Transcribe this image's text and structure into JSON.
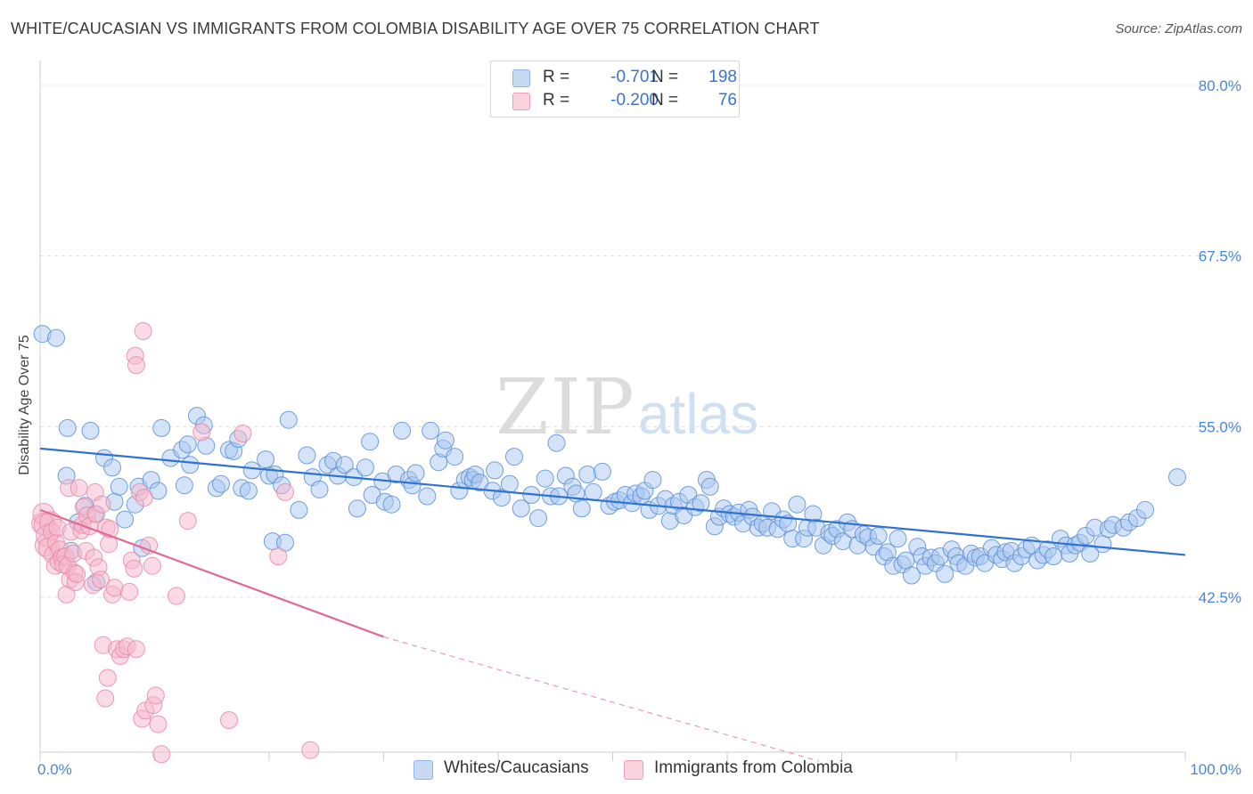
{
  "title": "WHITE/CAUCASIAN VS IMMIGRANTS FROM COLOMBIA DISABILITY AGE OVER 75 CORRELATION CHART",
  "source": "Source: ZipAtlas.com",
  "watermark": {
    "zip": "ZIP",
    "atlas": "atlas"
  },
  "legend": {
    "rows": [
      {
        "r_label": "R =",
        "r_value": "-0.701",
        "n_label": "N =",
        "n_value": "198",
        "color": "#a9c8ef"
      },
      {
        "r_label": "R =",
        "r_value": "-0.200",
        "n_label": "N =",
        "n_value": "76",
        "color": "#f6b8cb"
      }
    ]
  },
  "bottom_legend": [
    {
      "label": "Whites/Caucasians",
      "color": "#a9c8ef"
    },
    {
      "label": "Immigrants from Colombia",
      "color": "#f6b8cb"
    }
  ],
  "chart_data": {
    "type": "scatter",
    "title": "WHITE/CAUCASIAN VS IMMIGRANTS FROM COLOMBIA DISABILITY AGE OVER 75 CORRELATION CHART",
    "xlabel": "",
    "ylabel": "Disability Age Over 75",
    "xlim": [
      0,
      100
    ],
    "ylim": [
      30.5,
      81.5
    ],
    "x_tick_labels": [
      {
        "value": 0,
        "label": "0.0%"
      },
      {
        "value": 100,
        "label": "100.0%"
      }
    ],
    "y_tick_labels": [
      {
        "value": 42.5,
        "label": "42.5%"
      },
      {
        "value": 55.0,
        "label": "55.0%"
      },
      {
        "value": 67.5,
        "label": "67.5%"
      },
      {
        "value": 80.0,
        "label": "80.0%"
      }
    ],
    "grid": true,
    "legend_position": "top-center",
    "series": [
      {
        "name": "Whites/Caucasians",
        "color": "#5b8fd8",
        "fill": "#a9c8ef",
        "trend": {
          "x": [
            0,
            100
          ],
          "y": [
            53.4,
            45.6
          ]
        },
        "points": [
          [
            0.2,
            61.8
          ],
          [
            1.4,
            61.5
          ],
          [
            2.3,
            51.4
          ],
          [
            2.4,
            54.9
          ],
          [
            2.7,
            45.9
          ],
          [
            3.3,
            48.0
          ],
          [
            3.9,
            49.2
          ],
          [
            4.4,
            54.7
          ],
          [
            4.8,
            48.6
          ],
          [
            4.9,
            43.6
          ],
          [
            5.6,
            52.7
          ],
          [
            6.3,
            52.0
          ],
          [
            6.5,
            49.5
          ],
          [
            6.9,
            50.6
          ],
          [
            7.4,
            48.2
          ],
          [
            8.3,
            49.3
          ],
          [
            8.6,
            50.6
          ],
          [
            8.9,
            46.1
          ],
          [
            9.7,
            51.1
          ],
          [
            10.3,
            50.3
          ],
          [
            10.6,
            54.9
          ],
          [
            11.4,
            52.7
          ],
          [
            12.4,
            53.3
          ],
          [
            12.6,
            50.7
          ],
          [
            12.9,
            53.7
          ],
          [
            13.1,
            52.2
          ],
          [
            13.7,
            55.8
          ],
          [
            14.3,
            55.1
          ],
          [
            14.5,
            53.6
          ],
          [
            15.4,
            50.5
          ],
          [
            15.8,
            50.8
          ],
          [
            16.5,
            53.3
          ],
          [
            16.9,
            53.2
          ],
          [
            17.3,
            54.1
          ],
          [
            17.6,
            50.5
          ],
          [
            18.2,
            50.3
          ],
          [
            18.5,
            51.8
          ],
          [
            19.7,
            52.6
          ],
          [
            20.0,
            51.4
          ],
          [
            20.3,
            46.6
          ],
          [
            20.5,
            51.5
          ],
          [
            21.1,
            50.7
          ],
          [
            21.4,
            46.5
          ],
          [
            21.7,
            55.5
          ],
          [
            22.6,
            48.9
          ],
          [
            23.3,
            52.9
          ],
          [
            23.8,
            51.3
          ],
          [
            24.4,
            50.4
          ],
          [
            25.1,
            52.2
          ],
          [
            25.6,
            52.5
          ],
          [
            26.0,
            51.4
          ],
          [
            26.6,
            52.2
          ],
          [
            27.4,
            51.3
          ],
          [
            27.7,
            49.0
          ],
          [
            28.4,
            52.0
          ],
          [
            28.8,
            53.9
          ],
          [
            29.0,
            50.0
          ],
          [
            29.9,
            51.0
          ],
          [
            30.1,
            49.5
          ],
          [
            30.7,
            49.3
          ],
          [
            31.1,
            51.5
          ],
          [
            31.6,
            54.7
          ],
          [
            32.2,
            51.1
          ],
          [
            32.5,
            50.7
          ],
          [
            32.8,
            51.6
          ],
          [
            33.8,
            49.9
          ],
          [
            34.1,
            54.7
          ],
          [
            34.8,
            52.4
          ],
          [
            35.2,
            53.4
          ],
          [
            35.4,
            54.0
          ],
          [
            36.2,
            52.8
          ],
          [
            36.6,
            50.3
          ],
          [
            37.1,
            51.1
          ],
          [
            37.5,
            51.3
          ],
          [
            37.8,
            51.1
          ],
          [
            38.0,
            51.5
          ],
          [
            38.4,
            50.9
          ],
          [
            39.5,
            50.3
          ],
          [
            39.7,
            51.8
          ],
          [
            40.3,
            49.8
          ],
          [
            41.0,
            50.8
          ],
          [
            41.4,
            52.8
          ],
          [
            42.0,
            49.0
          ],
          [
            42.9,
            50.0
          ],
          [
            43.5,
            48.3
          ],
          [
            44.1,
            51.2
          ],
          [
            44.6,
            49.9
          ],
          [
            45.1,
            53.8
          ],
          [
            45.3,
            49.9
          ],
          [
            45.9,
            51.4
          ],
          [
            46.5,
            50.6
          ],
          [
            46.8,
            50.1
          ],
          [
            47.3,
            49.0
          ],
          [
            47.8,
            51.5
          ],
          [
            48.3,
            50.2
          ],
          [
            49.1,
            51.7
          ],
          [
            49.7,
            49.2
          ],
          [
            50.2,
            49.5
          ],
          [
            50.6,
            49.6
          ],
          [
            51.1,
            50.0
          ],
          [
            51.7,
            49.4
          ],
          [
            52.0,
            50.1
          ],
          [
            52.5,
            49.9
          ],
          [
            52.8,
            50.3
          ],
          [
            53.2,
            48.9
          ],
          [
            53.5,
            51.1
          ],
          [
            54.0,
            49.2
          ],
          [
            54.6,
            49.7
          ],
          [
            55.0,
            48.1
          ],
          [
            55.3,
            49.2
          ],
          [
            55.8,
            49.5
          ],
          [
            56.2,
            48.5
          ],
          [
            56.6,
            50.0
          ],
          [
            57.2,
            49.1
          ],
          [
            57.7,
            49.4
          ],
          [
            58.2,
            51.1
          ],
          [
            58.5,
            50.6
          ],
          [
            58.9,
            47.7
          ],
          [
            59.3,
            48.4
          ],
          [
            59.7,
            49.0
          ],
          [
            60.2,
            48.6
          ],
          [
            60.6,
            48.4
          ],
          [
            61.0,
            48.7
          ],
          [
            61.4,
            47.9
          ],
          [
            61.9,
            48.9
          ],
          [
            62.2,
            48.4
          ],
          [
            62.7,
            47.6
          ],
          [
            63.1,
            47.9
          ],
          [
            63.5,
            47.6
          ],
          [
            63.9,
            48.8
          ],
          [
            64.4,
            47.5
          ],
          [
            64.9,
            48.2
          ],
          [
            65.3,
            47.9
          ],
          [
            65.7,
            46.8
          ],
          [
            66.1,
            49.3
          ],
          [
            66.7,
            46.8
          ],
          [
            67.0,
            47.6
          ],
          [
            67.5,
            48.6
          ],
          [
            67.8,
            47.6
          ],
          [
            68.4,
            46.3
          ],
          [
            68.9,
            47.2
          ],
          [
            69.2,
            47.0
          ],
          [
            69.6,
            47.5
          ],
          [
            70.1,
            46.6
          ],
          [
            70.5,
            48.0
          ],
          [
            70.9,
            47.5
          ],
          [
            71.4,
            46.3
          ],
          [
            71.9,
            47.1
          ],
          [
            72.3,
            46.9
          ],
          [
            72.8,
            46.2
          ],
          [
            73.2,
            47.0
          ],
          [
            73.7,
            45.5
          ],
          [
            74.0,
            45.8
          ],
          [
            74.5,
            44.8
          ],
          [
            74.9,
            46.8
          ],
          [
            75.3,
            44.9
          ],
          [
            75.6,
            45.2
          ],
          [
            76.1,
            44.1
          ],
          [
            76.6,
            46.2
          ],
          [
            77.0,
            45.5
          ],
          [
            77.3,
            44.8
          ],
          [
            77.8,
            45.4
          ],
          [
            78.2,
            45.0
          ],
          [
            78.6,
            45.5
          ],
          [
            79.0,
            44.2
          ],
          [
            79.6,
            46.0
          ],
          [
            80.0,
            45.5
          ],
          [
            80.2,
            45.0
          ],
          [
            80.8,
            44.8
          ],
          [
            81.3,
            45.7
          ],
          [
            81.7,
            45.4
          ],
          [
            82.1,
            45.5
          ],
          [
            82.5,
            45.0
          ],
          [
            83.1,
            46.1
          ],
          [
            83.5,
            45.6
          ],
          [
            84.0,
            45.3
          ],
          [
            84.3,
            45.8
          ],
          [
            84.8,
            45.9
          ],
          [
            85.1,
            45.0
          ],
          [
            85.7,
            45.5
          ],
          [
            86.1,
            46.0
          ],
          [
            86.6,
            46.3
          ],
          [
            87.1,
            45.2
          ],
          [
            87.6,
            45.6
          ],
          [
            88.0,
            46.0
          ],
          [
            88.5,
            45.5
          ],
          [
            89.1,
            46.8
          ],
          [
            89.6,
            46.3
          ],
          [
            89.9,
            45.7
          ],
          [
            90.4,
            46.3
          ],
          [
            90.8,
            46.5
          ],
          [
            91.3,
            47.0
          ],
          [
            91.7,
            45.7
          ],
          [
            92.1,
            47.6
          ],
          [
            92.8,
            46.4
          ],
          [
            93.3,
            47.5
          ],
          [
            93.7,
            47.8
          ],
          [
            94.6,
            47.6
          ],
          [
            95.1,
            48.0
          ],
          [
            95.8,
            48.3
          ],
          [
            96.5,
            48.9
          ],
          [
            99.3,
            51.3
          ]
        ]
      },
      {
        "name": "Immigrants from Colombia",
        "color": "#e88aa6",
        "fill": "#f6b8cb",
        "trend": {
          "x": [
            0,
            30
          ],
          "y": [
            48.9,
            39.6
          ]
        },
        "trend_dashed": {
          "x": [
            30,
            68
          ],
          "y": [
            39.6,
            30.5
          ]
        },
        "points": [
          [
            0.2,
            47.9
          ],
          [
            0.3,
            48.6
          ],
          [
            0.4,
            47.8
          ],
          [
            0.5,
            46.3
          ],
          [
            0.6,
            47.0
          ],
          [
            0.8,
            46.1
          ],
          [
            0.9,
            48.0
          ],
          [
            1.0,
            47.3
          ],
          [
            1.1,
            45.6
          ],
          [
            1.3,
            44.8
          ],
          [
            1.4,
            46.5
          ],
          [
            1.5,
            47.6
          ],
          [
            1.6,
            45.1
          ],
          [
            1.7,
            46.0
          ],
          [
            1.9,
            45.4
          ],
          [
            2.0,
            44.9
          ],
          [
            2.2,
            45.5
          ],
          [
            2.3,
            42.7
          ],
          [
            2.4,
            44.8
          ],
          [
            2.5,
            50.5
          ],
          [
            2.6,
            43.8
          ],
          [
            2.7,
            47.3
          ],
          [
            2.9,
            45.7
          ],
          [
            3.0,
            44.3
          ],
          [
            3.1,
            43.6
          ],
          [
            3.2,
            44.2
          ],
          [
            3.4,
            50.5
          ],
          [
            3.6,
            47.4
          ],
          [
            3.7,
            47.8
          ],
          [
            3.8,
            49.1
          ],
          [
            4.0,
            45.9
          ],
          [
            4.1,
            48.5
          ],
          [
            4.3,
            47.7
          ],
          [
            4.6,
            43.4
          ],
          [
            4.7,
            45.4
          ],
          [
            4.8,
            50.2
          ],
          [
            4.9,
            48.6
          ],
          [
            5.1,
            44.7
          ],
          [
            5.3,
            43.8
          ],
          [
            5.4,
            49.3
          ],
          [
            5.5,
            39.0
          ],
          [
            5.7,
            35.1
          ],
          [
            5.8,
            47.6
          ],
          [
            5.9,
            36.6
          ],
          [
            6.0,
            46.4
          ],
          [
            6.1,
            47.5
          ],
          [
            6.3,
            42.7
          ],
          [
            6.5,
            43.2
          ],
          [
            6.7,
            38.7
          ],
          [
            7.0,
            38.2
          ],
          [
            7.3,
            38.7
          ],
          [
            7.6,
            38.9
          ],
          [
            7.8,
            42.9
          ],
          [
            8.0,
            45.2
          ],
          [
            8.2,
            44.6
          ],
          [
            8.4,
            38.7
          ],
          [
            8.7,
            50.2
          ],
          [
            8.9,
            33.6
          ],
          [
            9.1,
            49.8
          ],
          [
            9.2,
            34.2
          ],
          [
            9.5,
            46.3
          ],
          [
            9.8,
            44.8
          ],
          [
            9.9,
            34.6
          ],
          [
            10.1,
            35.3
          ],
          [
            10.3,
            33.2
          ],
          [
            10.6,
            31.0
          ],
          [
            11.9,
            42.6
          ],
          [
            12.9,
            48.1
          ],
          [
            14.1,
            54.6
          ],
          [
            16.5,
            33.5
          ],
          [
            17.7,
            54.5
          ],
          [
            20.8,
            45.5
          ],
          [
            21.4,
            50.2
          ],
          [
            23.6,
            31.3
          ],
          [
            9.0,
            62.0
          ],
          [
            8.3,
            60.2
          ],
          [
            8.4,
            59.5
          ]
        ]
      }
    ]
  }
}
